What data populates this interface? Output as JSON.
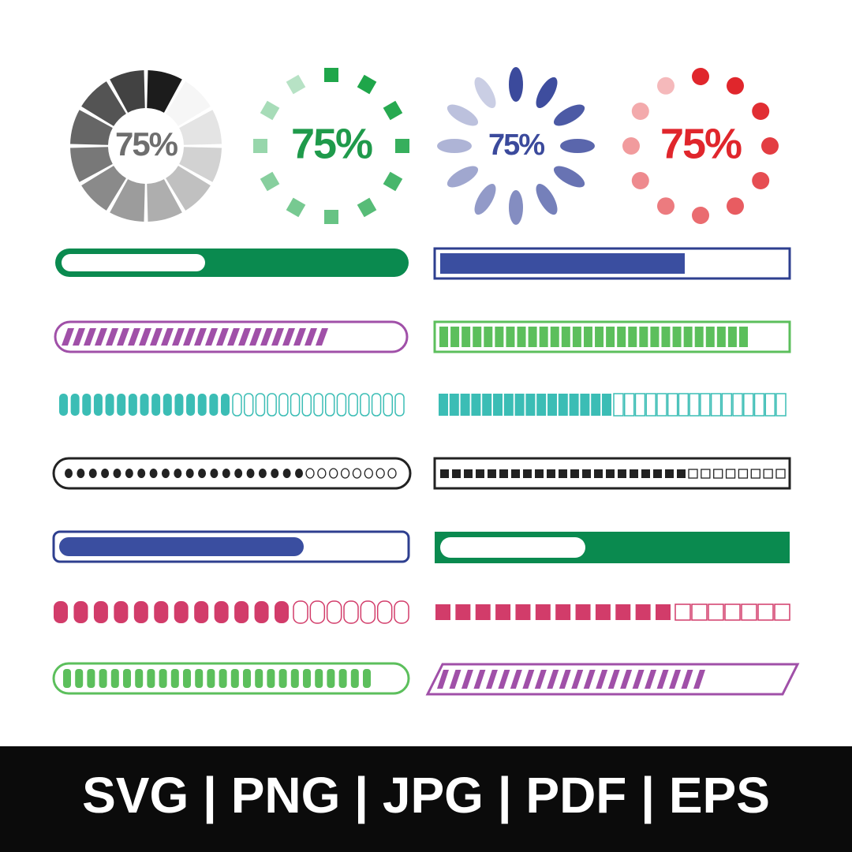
{
  "spinners": [
    {
      "label": "75%"
    },
    {
      "label": "75%"
    },
    {
      "label": "75%"
    },
    {
      "label": "75%"
    }
  ],
  "footer": {
    "formats": "SVG | PNG | JPG | PDF | EPS"
  }
}
